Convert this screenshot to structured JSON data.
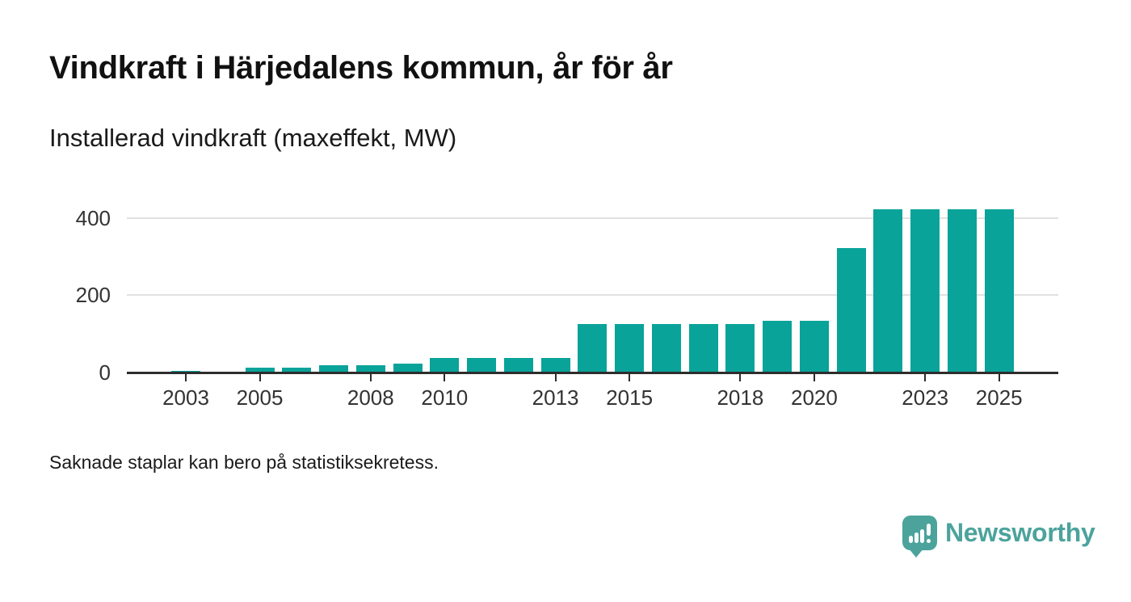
{
  "header": {
    "title": "Vindkraft i Härjedalens kommun, år för år",
    "subtitle": "Installerad vindkraft (maxeffekt, MW)"
  },
  "footnote": "Saknade staplar kan bero på statistiksekretess.",
  "branding": {
    "name": "Newsworthy",
    "color": "#4BA39C",
    "icon": "speech-bubble-with-bar-chart-and-exclamation"
  },
  "colors": {
    "bar": "#09A39A",
    "axis": "#2D2D2D",
    "gridline": "#E1E1E1",
    "tick_label": "#333333",
    "text": "#1A1A1A"
  },
  "chart_data": {
    "type": "bar",
    "title": "Vindkraft i Härjedalens kommun, år för år",
    "subtitle": "Installerad vindkraft (maxeffekt, MW)",
    "unit": "MW",
    "xlabel": "",
    "ylabel": "",
    "categories": [
      2003,
      2004,
      2005,
      2006,
      2007,
      2008,
      2009,
      2010,
      2011,
      2012,
      2013,
      2014,
      2015,
      2016,
      2017,
      2018,
      2019,
      2020,
      2021,
      2022,
      2023,
      2024,
      2025
    ],
    "values": [
      5,
      3,
      13,
      13,
      19,
      19,
      23,
      37,
      37,
      37,
      37,
      125,
      125,
      125,
      125,
      125,
      134,
      134,
      322,
      421,
      421,
      421,
      421
    ],
    "xticks": [
      2003,
      2005,
      2008,
      2010,
      2013,
      2015,
      2018,
      2020,
      2023,
      2025
    ],
    "yticks": [
      0,
      200,
      400
    ],
    "ylim": [
      0,
      440
    ],
    "grid": "horizontal",
    "legend": "none",
    "bar_color": "#09A39A"
  }
}
